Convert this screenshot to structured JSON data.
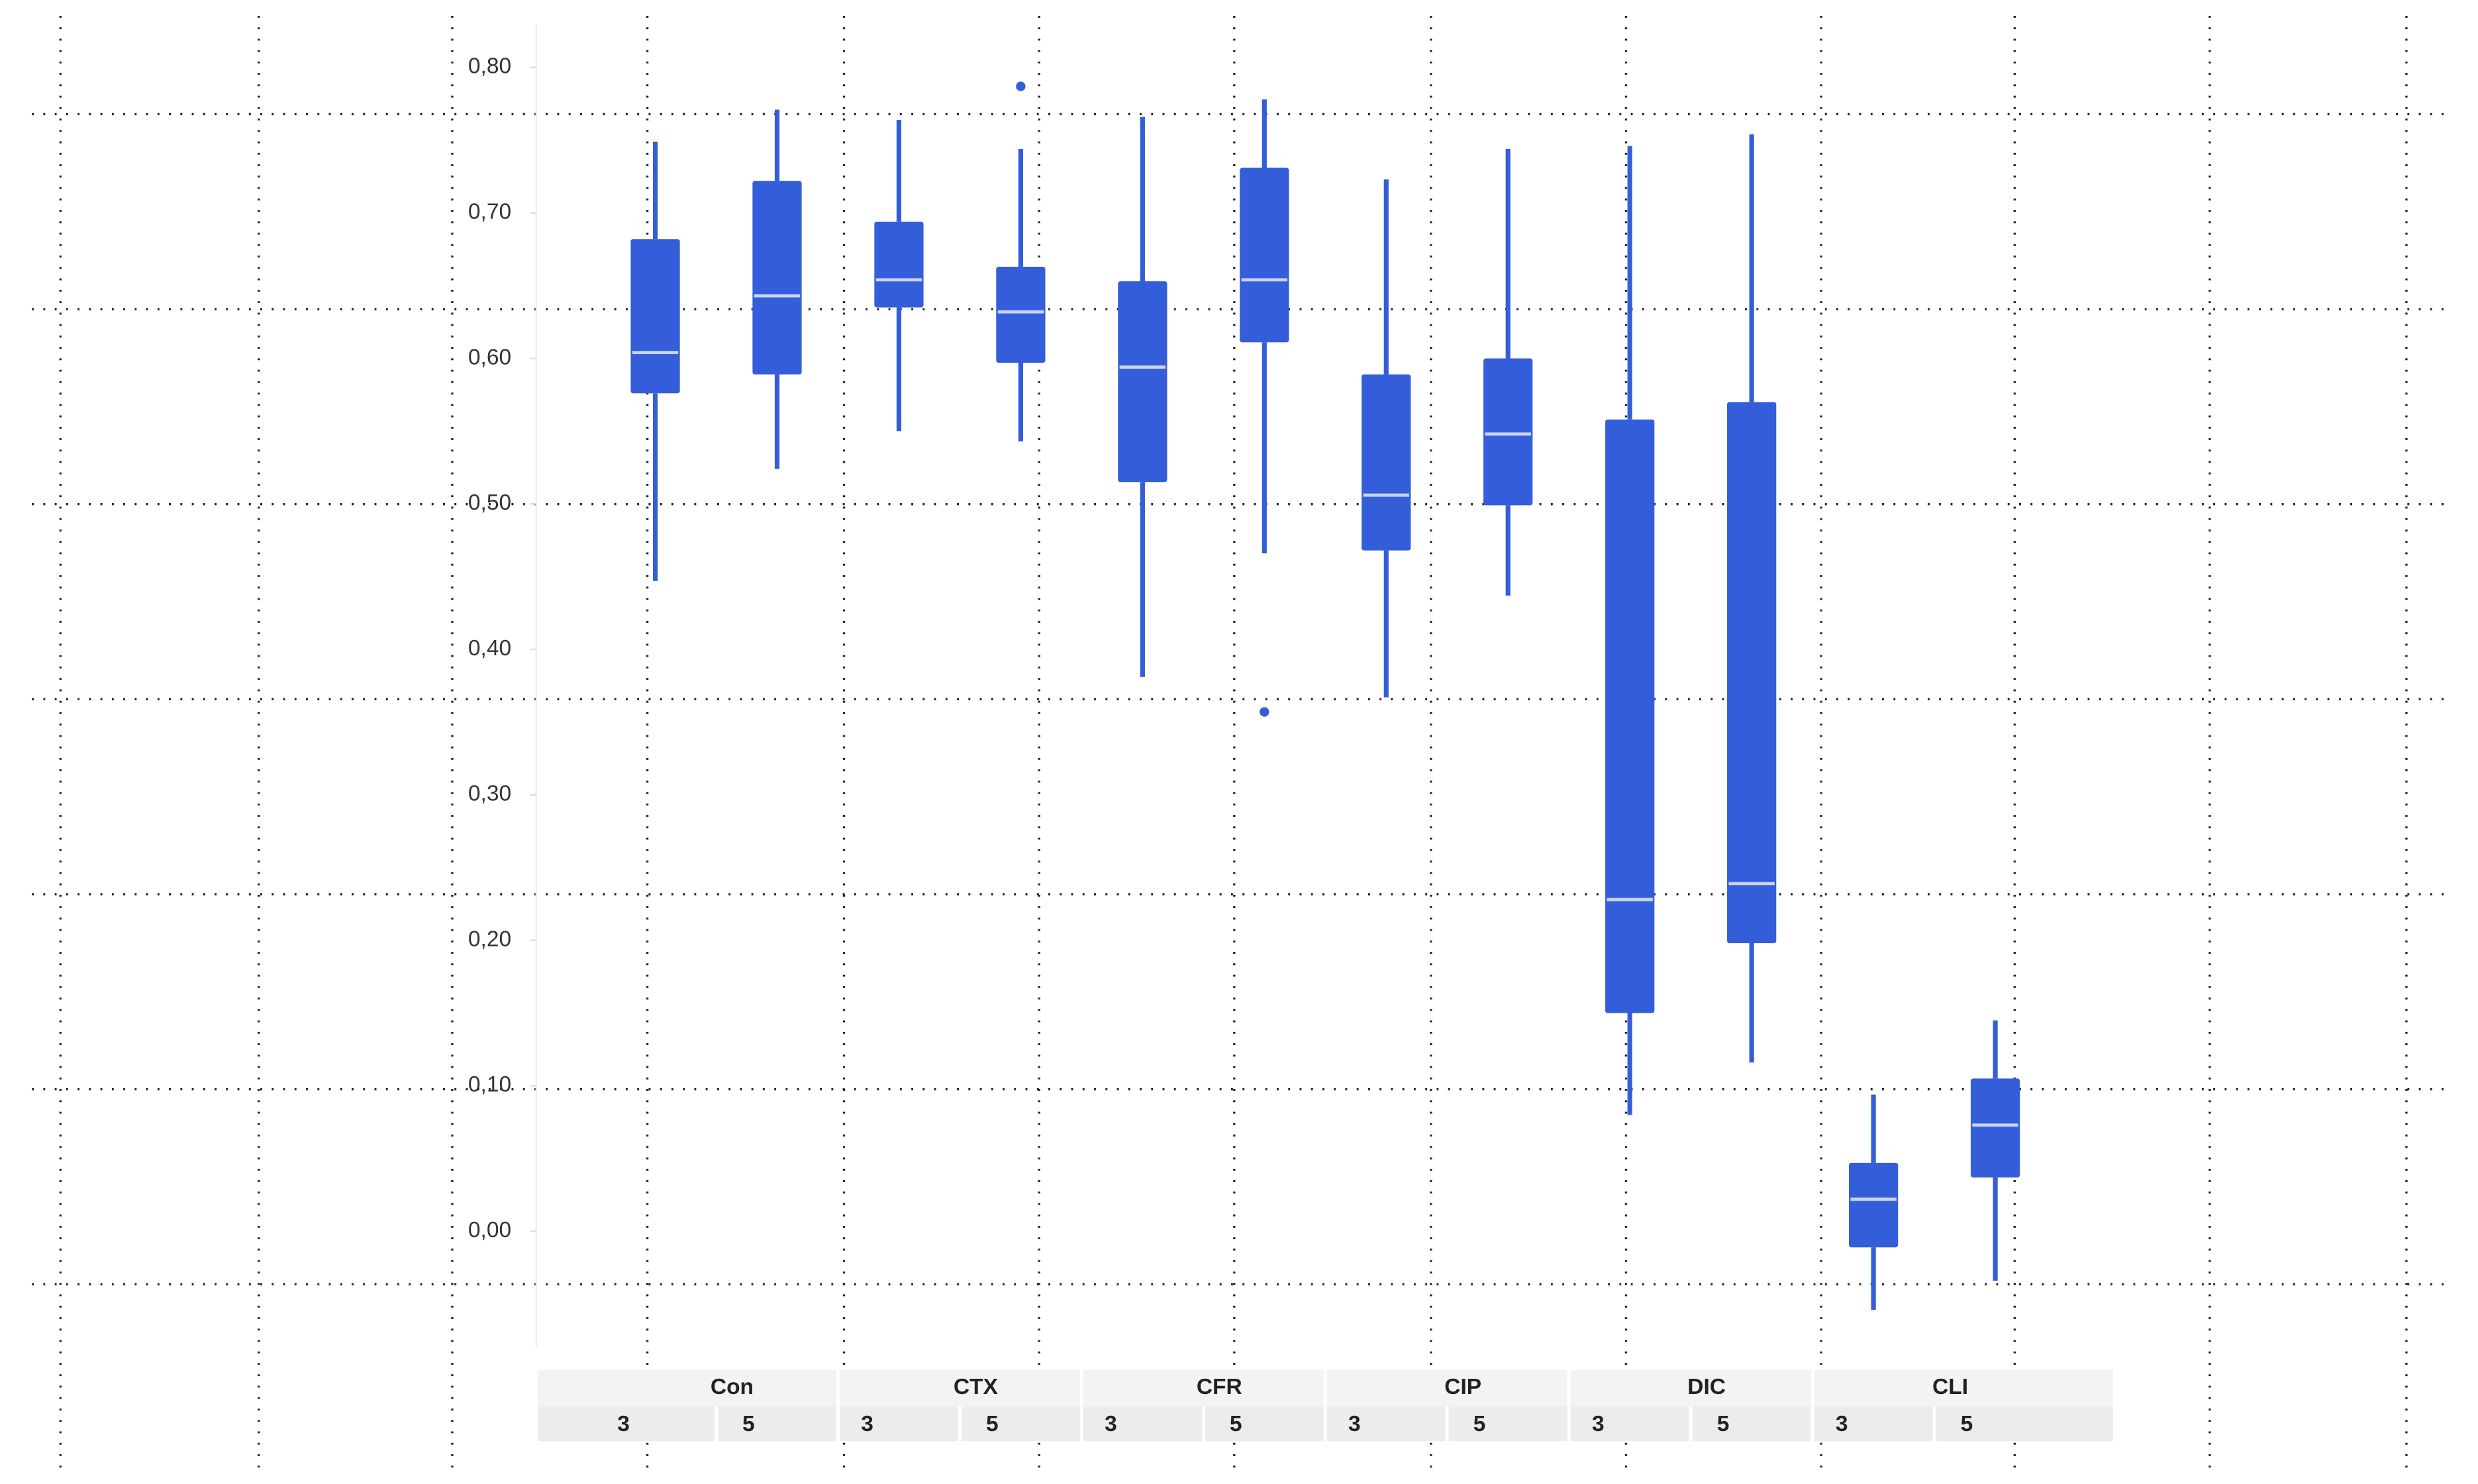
{
  "chart_data": {
    "type": "box",
    "groups": [
      "Con",
      "CTX",
      "CFR",
      "CIP",
      "DIC",
      "CLI"
    ],
    "categories": [
      "3",
      "5",
      "3",
      "5",
      "3",
      "5",
      "3",
      "5",
      "3",
      "5",
      "3",
      "5"
    ],
    "ylim": [
      -0.08,
      0.83
    ],
    "yticks": [
      {
        "value": 0.8,
        "label": "0,80"
      },
      {
        "value": 0.7,
        "label": "0,70"
      },
      {
        "value": 0.6,
        "label": "0,60"
      },
      {
        "value": 0.5,
        "label": "0,50"
      },
      {
        "value": 0.4,
        "label": "0,40"
      },
      {
        "value": 0.3,
        "label": "0,30"
      },
      {
        "value": 0.2,
        "label": "0,20"
      },
      {
        "value": 0.1,
        "label": "0,10"
      },
      {
        "value": 0.0,
        "label": "0,00"
      }
    ],
    "color": "#345ed9",
    "median_color": "#c9d5f3",
    "boxes": [
      {
        "min": 0.447,
        "q1": 0.576,
        "median": 0.604,
        "q3": 0.682,
        "max": 0.749
      },
      {
        "min": 0.524,
        "q1": 0.589,
        "median": 0.643,
        "q3": 0.722,
        "max": 0.771
      },
      {
        "min": 0.55,
        "q1": 0.635,
        "median": 0.654,
        "q3": 0.694,
        "max": 0.764
      },
      {
        "min": 0.543,
        "q1": 0.597,
        "median": 0.632,
        "q3": 0.663,
        "max": 0.744,
        "outliers": [
          0.787
        ]
      },
      {
        "min": 0.381,
        "q1": 0.515,
        "median": 0.594,
        "q3": 0.653,
        "max": 0.766
      },
      {
        "min": 0.466,
        "q1": 0.611,
        "median": 0.654,
        "q3": 0.731,
        "max": 0.778,
        "outliers": [
          0.357
        ]
      },
      {
        "min": 0.367,
        "q1": 0.468,
        "median": 0.506,
        "q3": 0.589,
        "max": 0.723
      },
      {
        "min": 0.437,
        "q1": 0.499,
        "median": 0.548,
        "q3": 0.6,
        "max": 0.744
      },
      {
        "min": 0.08,
        "q1": 0.15,
        "median": 0.228,
        "q3": 0.558,
        "max": 0.746
      },
      {
        "min": 0.116,
        "q1": 0.198,
        "median": 0.239,
        "q3": 0.57,
        "max": 0.754
      },
      {
        "min": -0.054,
        "q1": -0.011,
        "median": 0.022,
        "q3": 0.047,
        "max": 0.094
      },
      {
        "min": -0.034,
        "q1": 0.037,
        "median": 0.073,
        "q3": 0.105,
        "max": 0.145
      }
    ]
  }
}
